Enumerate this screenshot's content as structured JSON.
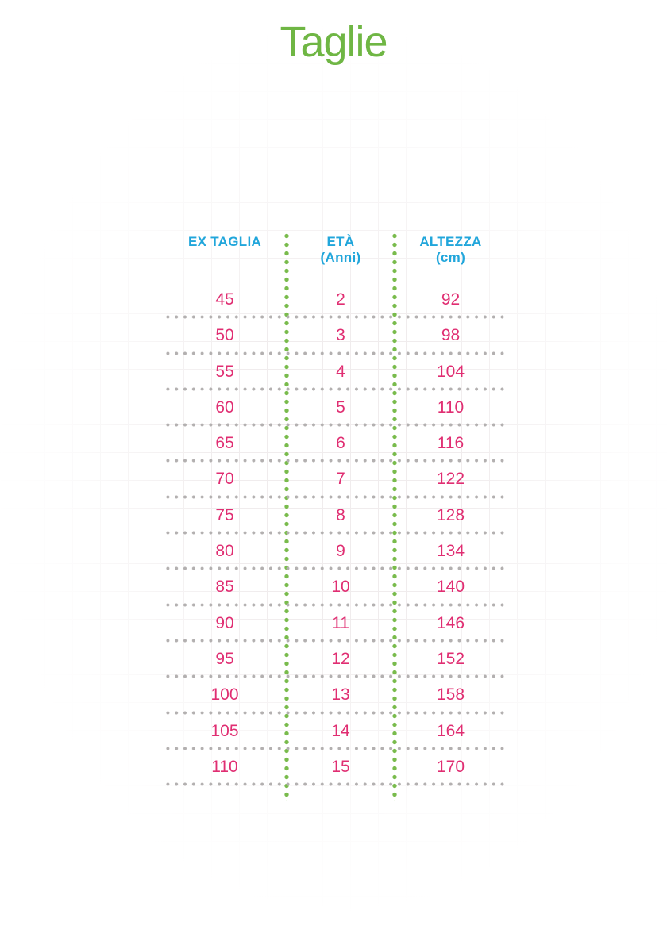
{
  "title": "Taglie",
  "colors": {
    "title_green": "#6fb644",
    "dot_green": "#79bb4c",
    "header_cyan": "#21a6db",
    "value_pink": "#e02e72",
    "divider_gray": "#b3b0b0",
    "grid_line": "#f0eced"
  },
  "table": {
    "headers": [
      {
        "label": "EX TAGLIA",
        "sub": ""
      },
      {
        "label": "ETÀ",
        "sub": "(Anni)"
      },
      {
        "label": "ALTEZZA",
        "sub": "(cm)"
      }
    ],
    "rows": [
      {
        "ex_taglia": "45",
        "eta": "2",
        "altezza": "92"
      },
      {
        "ex_taglia": "50",
        "eta": "3",
        "altezza": "98"
      },
      {
        "ex_taglia": "55",
        "eta": "4",
        "altezza": "104"
      },
      {
        "ex_taglia": "60",
        "eta": "5",
        "altezza": "110"
      },
      {
        "ex_taglia": "65",
        "eta": "6",
        "altezza": "116"
      },
      {
        "ex_taglia": "70",
        "eta": "7",
        "altezza": "122"
      },
      {
        "ex_taglia": "75",
        "eta": "8",
        "altezza": "128"
      },
      {
        "ex_taglia": "80",
        "eta": "9",
        "altezza": "134"
      },
      {
        "ex_taglia": "85",
        "eta": "10",
        "altezza": "140"
      },
      {
        "ex_taglia": "90",
        "eta": "11",
        "altezza": "146"
      },
      {
        "ex_taglia": "95",
        "eta": "12",
        "altezza": "152"
      },
      {
        "ex_taglia": "100",
        "eta": "13",
        "altezza": "158"
      },
      {
        "ex_taglia": "105",
        "eta": "14",
        "altezza": "164"
      },
      {
        "ex_taglia": "110",
        "eta": "15",
        "altezza": "170"
      }
    ]
  },
  "chart_data": {
    "type": "table",
    "title": "Taglie",
    "columns": [
      "EX TAGLIA",
      "ETÀ (Anni)",
      "ALTEZZA (cm)"
    ],
    "rows": [
      [
        45,
        2,
        92
      ],
      [
        50,
        3,
        98
      ],
      [
        55,
        4,
        104
      ],
      [
        60,
        5,
        110
      ],
      [
        65,
        6,
        116
      ],
      [
        70,
        7,
        122
      ],
      [
        75,
        8,
        128
      ],
      [
        80,
        9,
        134
      ],
      [
        85,
        10,
        140
      ],
      [
        90,
        11,
        146
      ],
      [
        95,
        12,
        152
      ],
      [
        100,
        13,
        158
      ],
      [
        105,
        14,
        164
      ],
      [
        110,
        15,
        170
      ]
    ],
    "layout_hints": {
      "title_color": "#6fb644",
      "header_color": "#21a6db",
      "value_color": "#e02e72",
      "column_separators": "green dotted vertical lines",
      "row_separators": "gray dotted horizontal lines",
      "background": "faint squared-paper grid fading at edges"
    }
  }
}
